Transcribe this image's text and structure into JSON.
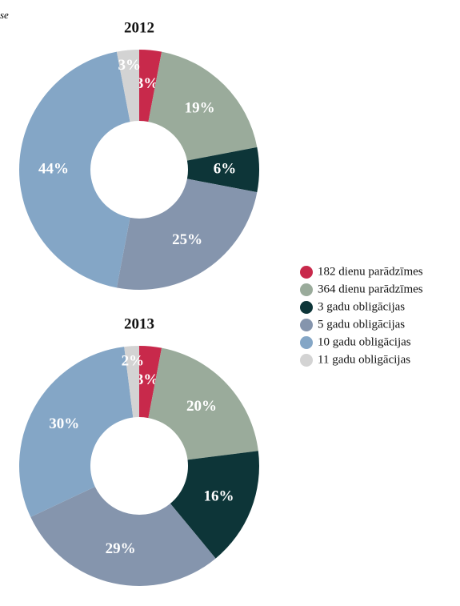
{
  "note": "se",
  "chart_data": [
    {
      "type": "pie",
      "title": "2012",
      "categories": [
        "182 dienu parādzīmes",
        "364 dienu parādzīmes",
        "3 gadu obligācijas",
        "5 gadu obligācijas",
        "10 gadu obligācijas",
        "11 gadu obligācijas"
      ],
      "values": [
        3,
        19,
        6,
        25,
        44,
        3
      ],
      "value_labels": [
        "3%",
        "19%",
        "6%",
        "25%",
        "44%",
        "3%"
      ],
      "colors": [
        "#c8294b",
        "#9aab9b",
        "#0d3538",
        "#8595ad",
        "#84a6c6",
        "#d3d3d3"
      ]
    },
    {
      "type": "pie",
      "title": "2013",
      "categories": [
        "182 dienu parādzīmes",
        "364 dienu parādzīmes",
        "3 gadu obligācijas",
        "5 gadu obligācijas",
        "10 gadu obligācijas",
        "11 gadu obligācijas"
      ],
      "values": [
        3,
        20,
        16,
        29,
        30,
        2
      ],
      "value_labels": [
        "3%",
        "20%",
        "16%",
        "29%",
        "30%",
        "2%"
      ],
      "colors": [
        "#c8294b",
        "#9aab9b",
        "#0d3538",
        "#8595ad",
        "#84a6c6",
        "#d3d3d3"
      ]
    }
  ]
}
